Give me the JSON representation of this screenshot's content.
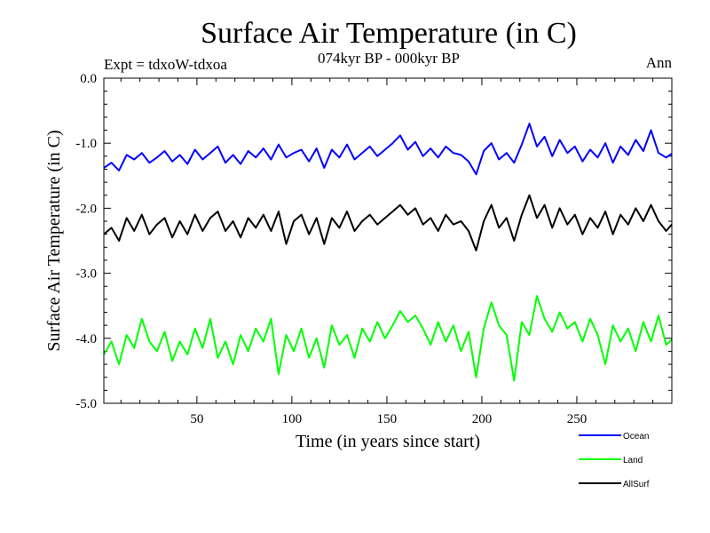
{
  "chart_data": {
    "type": "line",
    "title": "Surface Air Temperature (in C)",
    "subtitle": "074kyr BP - 000kyr BP",
    "left_note": "Expt = tdxoW-tdxoa",
    "right_note": "Ann",
    "xlabel": "Time (in years since start)",
    "ylabel": "Surface Air Temperature (in C)",
    "xlim": [
      1,
      300
    ],
    "ylim": [
      -5.0,
      0.0
    ],
    "x_ticks": [
      {
        "value": 50,
        "label": "50"
      },
      {
        "value": 100,
        "label": "100"
      },
      {
        "value": 150,
        "label": "150"
      },
      {
        "value": 200,
        "label": "200"
      },
      {
        "value": 250,
        "label": "250"
      }
    ],
    "y_ticks": [
      {
        "value": 0,
        "label": "0.0"
      },
      {
        "value": -1,
        "label": "-1.0"
      },
      {
        "value": -2,
        "label": "-2.0"
      },
      {
        "value": -3,
        "label": "-3.0"
      },
      {
        "value": -4,
        "label": "-4.0"
      },
      {
        "value": -5,
        "label": "-5.0"
      }
    ],
    "grid": false,
    "legend_position": "bottom-right",
    "series": [
      {
        "name": "Ocean",
        "color": "#0000ff",
        "points": [
          [
            1,
            -1.38
          ],
          [
            5,
            -1.3
          ],
          [
            9,
            -1.42
          ],
          [
            13,
            -1.18
          ],
          [
            17,
            -1.25
          ],
          [
            21,
            -1.15
          ],
          [
            25,
            -1.3
          ],
          [
            29,
            -1.22
          ],
          [
            33,
            -1.12
          ],
          [
            37,
            -1.28
          ],
          [
            41,
            -1.18
          ],
          [
            45,
            -1.32
          ],
          [
            49,
            -1.1
          ],
          [
            53,
            -1.25
          ],
          [
            57,
            -1.15
          ],
          [
            61,
            -1.05
          ],
          [
            65,
            -1.3
          ],
          [
            69,
            -1.18
          ],
          [
            73,
            -1.32
          ],
          [
            77,
            -1.12
          ],
          [
            81,
            -1.22
          ],
          [
            85,
            -1.08
          ],
          [
            89,
            -1.25
          ],
          [
            93,
            -1.02
          ],
          [
            97,
            -1.22
          ],
          [
            101,
            -1.15
          ],
          [
            105,
            -1.1
          ],
          [
            109,
            -1.28
          ],
          [
            113,
            -1.08
          ],
          [
            117,
            -1.38
          ],
          [
            121,
            -1.1
          ],
          [
            125,
            -1.22
          ],
          [
            129,
            -1.02
          ],
          [
            133,
            -1.25
          ],
          [
            137,
            -1.15
          ],
          [
            141,
            -1.05
          ],
          [
            145,
            -1.2
          ],
          [
            149,
            -1.1
          ],
          [
            153,
            -1.0
          ],
          [
            157,
            -0.88
          ],
          [
            161,
            -1.1
          ],
          [
            165,
            -0.98
          ],
          [
            169,
            -1.2
          ],
          [
            173,
            -1.08
          ],
          [
            177,
            -1.22
          ],
          [
            181,
            -1.05
          ],
          [
            185,
            -1.15
          ],
          [
            189,
            -1.18
          ],
          [
            193,
            -1.28
          ],
          [
            197,
            -1.48
          ],
          [
            201,
            -1.12
          ],
          [
            205,
            -1.0
          ],
          [
            209,
            -1.25
          ],
          [
            213,
            -1.15
          ],
          [
            217,
            -1.3
          ],
          [
            221,
            -1.02
          ],
          [
            225,
            -0.7
          ],
          [
            229,
            -1.05
          ],
          [
            233,
            -0.9
          ],
          [
            237,
            -1.2
          ],
          [
            241,
            -0.95
          ],
          [
            245,
            -1.15
          ],
          [
            249,
            -1.05
          ],
          [
            253,
            -1.28
          ],
          [
            257,
            -1.1
          ],
          [
            261,
            -1.22
          ],
          [
            265,
            -1.0
          ],
          [
            269,
            -1.3
          ],
          [
            273,
            -1.05
          ],
          [
            277,
            -1.18
          ],
          [
            281,
            -0.95
          ],
          [
            285,
            -1.12
          ],
          [
            289,
            -0.8
          ],
          [
            293,
            -1.15
          ],
          [
            297,
            -1.22
          ],
          [
            300,
            -1.16
          ]
        ]
      },
      {
        "name": "Land",
        "color": "#00ff00",
        "points": [
          [
            1,
            -4.25
          ],
          [
            5,
            -4.05
          ],
          [
            9,
            -4.4
          ],
          [
            13,
            -3.95
          ],
          [
            17,
            -4.15
          ],
          [
            21,
            -3.7
          ],
          [
            25,
            -4.05
          ],
          [
            29,
            -4.2
          ],
          [
            33,
            -3.9
          ],
          [
            37,
            -4.35
          ],
          [
            41,
            -4.05
          ],
          [
            45,
            -4.25
          ],
          [
            49,
            -3.85
          ],
          [
            53,
            -4.15
          ],
          [
            57,
            -3.7
          ],
          [
            61,
            -4.3
          ],
          [
            65,
            -4.05
          ],
          [
            69,
            -4.4
          ],
          [
            73,
            -3.95
          ],
          [
            77,
            -4.2
          ],
          [
            81,
            -3.85
          ],
          [
            85,
            -4.05
          ],
          [
            89,
            -3.7
          ],
          [
            93,
            -4.55
          ],
          [
            97,
            -3.95
          ],
          [
            101,
            -4.2
          ],
          [
            105,
            -3.85
          ],
          [
            109,
            -4.3
          ],
          [
            113,
            -4.0
          ],
          [
            117,
            -4.45
          ],
          [
            121,
            -3.8
          ],
          [
            125,
            -4.1
          ],
          [
            129,
            -3.95
          ],
          [
            133,
            -4.3
          ],
          [
            137,
            -3.85
          ],
          [
            141,
            -4.05
          ],
          [
            145,
            -3.75
          ],
          [
            149,
            -4.0
          ],
          [
            153,
            -3.8
          ],
          [
            157,
            -3.58
          ],
          [
            161,
            -3.75
          ],
          [
            165,
            -3.65
          ],
          [
            169,
            -3.85
          ],
          [
            173,
            -4.1
          ],
          [
            177,
            -3.75
          ],
          [
            181,
            -4.05
          ],
          [
            185,
            -3.8
          ],
          [
            189,
            -4.2
          ],
          [
            193,
            -3.9
          ],
          [
            197,
            -4.6
          ],
          [
            201,
            -3.85
          ],
          [
            205,
            -3.45
          ],
          [
            209,
            -3.8
          ],
          [
            213,
            -3.95
          ],
          [
            217,
            -4.65
          ],
          [
            221,
            -3.75
          ],
          [
            225,
            -3.95
          ],
          [
            229,
            -3.35
          ],
          [
            233,
            -3.7
          ],
          [
            237,
            -3.9
          ],
          [
            241,
            -3.6
          ],
          [
            245,
            -3.85
          ],
          [
            249,
            -3.75
          ],
          [
            253,
            -4.05
          ],
          [
            257,
            -3.7
          ],
          [
            261,
            -3.95
          ],
          [
            265,
            -4.4
          ],
          [
            269,
            -3.8
          ],
          [
            273,
            -4.05
          ],
          [
            277,
            -3.85
          ],
          [
            281,
            -4.2
          ],
          [
            285,
            -3.75
          ],
          [
            289,
            -4.05
          ],
          [
            293,
            -3.65
          ],
          [
            297,
            -4.1
          ],
          [
            300,
            -4.02
          ]
        ]
      },
      {
        "name": "AllSurf",
        "color": "#000000",
        "points": [
          [
            1,
            -2.4
          ],
          [
            5,
            -2.3
          ],
          [
            9,
            -2.5
          ],
          [
            13,
            -2.15
          ],
          [
            17,
            -2.35
          ],
          [
            21,
            -2.1
          ],
          [
            25,
            -2.4
          ],
          [
            29,
            -2.25
          ],
          [
            33,
            -2.15
          ],
          [
            37,
            -2.45
          ],
          [
            41,
            -2.2
          ],
          [
            45,
            -2.4
          ],
          [
            49,
            -2.1
          ],
          [
            53,
            -2.35
          ],
          [
            57,
            -2.15
          ],
          [
            61,
            -2.05
          ],
          [
            65,
            -2.35
          ],
          [
            69,
            -2.2
          ],
          [
            73,
            -2.45
          ],
          [
            77,
            -2.15
          ],
          [
            81,
            -2.3
          ],
          [
            85,
            -2.1
          ],
          [
            89,
            -2.35
          ],
          [
            93,
            -2.05
          ],
          [
            97,
            -2.55
          ],
          [
            101,
            -2.2
          ],
          [
            105,
            -2.1
          ],
          [
            109,
            -2.4
          ],
          [
            113,
            -2.15
          ],
          [
            117,
            -2.55
          ],
          [
            121,
            -2.15
          ],
          [
            125,
            -2.3
          ],
          [
            129,
            -2.05
          ],
          [
            133,
            -2.35
          ],
          [
            137,
            -2.2
          ],
          [
            141,
            -2.1
          ],
          [
            145,
            -2.25
          ],
          [
            149,
            -2.15
          ],
          [
            153,
            -2.05
          ],
          [
            157,
            -1.95
          ],
          [
            161,
            -2.1
          ],
          [
            165,
            -2.0
          ],
          [
            169,
            -2.25
          ],
          [
            173,
            -2.15
          ],
          [
            177,
            -2.35
          ],
          [
            181,
            -2.1
          ],
          [
            185,
            -2.25
          ],
          [
            189,
            -2.2
          ],
          [
            193,
            -2.35
          ],
          [
            197,
            -2.65
          ],
          [
            201,
            -2.2
          ],
          [
            205,
            -1.95
          ],
          [
            209,
            -2.3
          ],
          [
            213,
            -2.15
          ],
          [
            217,
            -2.5
          ],
          [
            221,
            -2.1
          ],
          [
            225,
            -1.8
          ],
          [
            229,
            -2.15
          ],
          [
            233,
            -1.95
          ],
          [
            237,
            -2.3
          ],
          [
            241,
            -2.0
          ],
          [
            245,
            -2.25
          ],
          [
            249,
            -2.1
          ],
          [
            253,
            -2.4
          ],
          [
            257,
            -2.15
          ],
          [
            261,
            -2.3
          ],
          [
            265,
            -2.05
          ],
          [
            269,
            -2.4
          ],
          [
            273,
            -2.1
          ],
          [
            277,
            -2.25
          ],
          [
            281,
            -2.0
          ],
          [
            285,
            -2.2
          ],
          [
            289,
            -1.95
          ],
          [
            293,
            -2.2
          ],
          [
            297,
            -2.35
          ],
          [
            300,
            -2.25
          ]
        ]
      }
    ]
  }
}
